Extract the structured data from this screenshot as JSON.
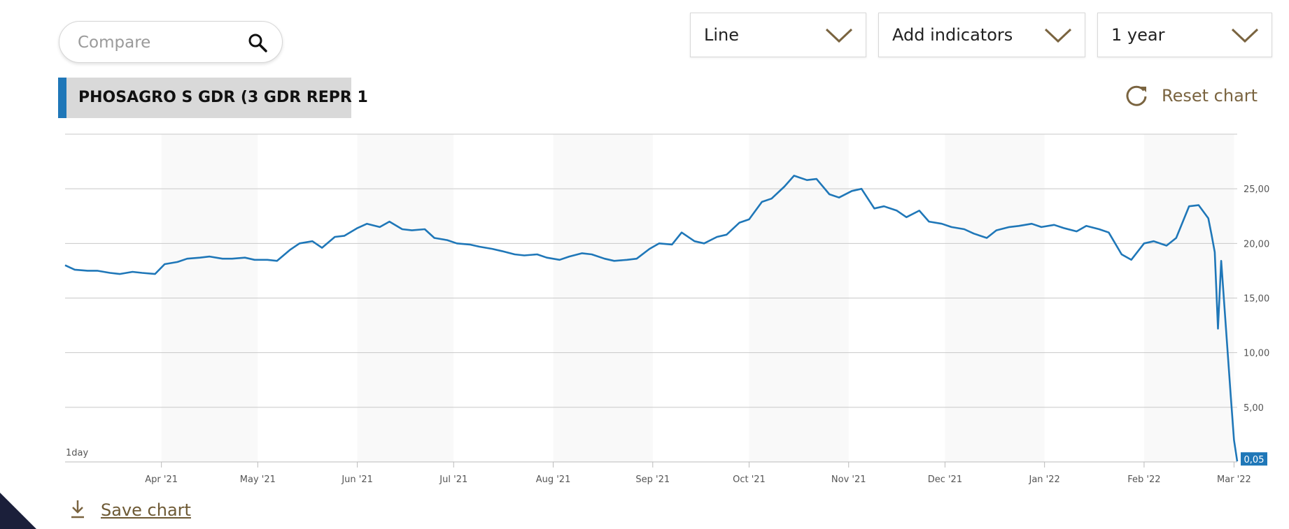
{
  "compare": {
    "placeholder": "Compare"
  },
  "controls": {
    "chart_type": "Line",
    "indicators": "Add indicators",
    "period": "1 year"
  },
  "symbol_label": "PHOSAGRO S GDR (3 GDR REPR 1",
  "reset_label": "Reset chart",
  "save_label": "Save chart",
  "colors": {
    "line": "#1f77b8",
    "accent": "#7a6440",
    "grid": "#c8c8c8",
    "axis_text": "#555555"
  },
  "chart_data": {
    "type": "line",
    "interval_label": "1day",
    "last_value_label": "0,05",
    "ylim": [
      0,
      30
    ],
    "y_ticks": [
      {
        "value": 5,
        "label": "5,00"
      },
      {
        "value": 10,
        "label": "10,00"
      },
      {
        "value": 15,
        "label": "15,00"
      },
      {
        "value": 20,
        "label": "20,00"
      },
      {
        "value": 25,
        "label": "25,00"
      }
    ],
    "x_start": "2021-03-02",
    "x_end": "2022-03-02",
    "x_ticks": [
      {
        "date": "2021-04-01",
        "label": "Apr '21"
      },
      {
        "date": "2021-05-01",
        "label": "May '21"
      },
      {
        "date": "2021-06-01",
        "label": "Jun '21"
      },
      {
        "date": "2021-07-01",
        "label": "Jul '21"
      },
      {
        "date": "2021-08-01",
        "label": "Aug '21"
      },
      {
        "date": "2021-09-01",
        "label": "Sep '21"
      },
      {
        "date": "2021-10-01",
        "label": "Oct '21"
      },
      {
        "date": "2021-11-01",
        "label": "Nov '21"
      },
      {
        "date": "2021-12-01",
        "label": "Dec '21"
      },
      {
        "date": "2022-01-01",
        "label": "Jan '22"
      },
      {
        "date": "2022-02-01",
        "label": "Feb '22"
      },
      {
        "date": "2022-03-01",
        "label": "Mar '22"
      }
    ],
    "series": [
      {
        "x": [
          "2021-03-02",
          "2021-03-05",
          "2021-03-09",
          "2021-03-12",
          "2021-03-16",
          "2021-03-19",
          "2021-03-23",
          "2021-03-26",
          "2021-03-30",
          "2021-04-02",
          "2021-04-06",
          "2021-04-09",
          "2021-04-13",
          "2021-04-16",
          "2021-04-20",
          "2021-04-23",
          "2021-04-27",
          "2021-04-30",
          "2021-05-04",
          "2021-05-07",
          "2021-05-11",
          "2021-05-14",
          "2021-05-18",
          "2021-05-21",
          "2021-05-25",
          "2021-05-28",
          "2021-06-01",
          "2021-06-04",
          "2021-06-08",
          "2021-06-11",
          "2021-06-15",
          "2021-06-18",
          "2021-06-22",
          "2021-06-25",
          "2021-06-29",
          "2021-07-02",
          "2021-07-06",
          "2021-07-09",
          "2021-07-13",
          "2021-07-16",
          "2021-07-20",
          "2021-07-23",
          "2021-07-27",
          "2021-07-30",
          "2021-08-03",
          "2021-08-06",
          "2021-08-10",
          "2021-08-13",
          "2021-08-17",
          "2021-08-20",
          "2021-08-24",
          "2021-08-27",
          "2021-08-31",
          "2021-09-03",
          "2021-09-07",
          "2021-09-10",
          "2021-09-14",
          "2021-09-17",
          "2021-09-21",
          "2021-09-24",
          "2021-09-28",
          "2021-10-01",
          "2021-10-05",
          "2021-10-08",
          "2021-10-12",
          "2021-10-15",
          "2021-10-19",
          "2021-10-22",
          "2021-10-26",
          "2021-10-29",
          "2021-11-02",
          "2021-11-05",
          "2021-11-09",
          "2021-11-12",
          "2021-11-16",
          "2021-11-19",
          "2021-11-23",
          "2021-11-26",
          "2021-11-30",
          "2021-12-03",
          "2021-12-07",
          "2021-12-10",
          "2021-12-14",
          "2021-12-17",
          "2021-12-21",
          "2021-12-24",
          "2021-12-28",
          "2021-12-31",
          "2022-01-04",
          "2022-01-07",
          "2022-01-11",
          "2022-01-14",
          "2022-01-18",
          "2022-01-21",
          "2022-01-25",
          "2022-01-28",
          "2022-02-01",
          "2022-02-04",
          "2022-02-08",
          "2022-02-11",
          "2022-02-15",
          "2022-02-18",
          "2022-02-21",
          "2022-02-22",
          "2022-02-23",
          "2022-02-24",
          "2022-02-25",
          "2022-02-28",
          "2022-03-01",
          "2022-03-02"
        ],
        "y": [
          18.0,
          17.6,
          17.5,
          17.5,
          17.3,
          17.2,
          17.4,
          17.3,
          17.2,
          18.1,
          18.3,
          18.6,
          18.7,
          18.8,
          18.6,
          18.6,
          18.7,
          18.5,
          18.5,
          18.4,
          19.4,
          20.0,
          20.2,
          19.6,
          20.6,
          20.7,
          21.4,
          21.8,
          21.5,
          22.0,
          21.3,
          21.2,
          21.3,
          20.5,
          20.3,
          20.0,
          19.9,
          19.7,
          19.5,
          19.3,
          19.0,
          18.9,
          19.0,
          18.7,
          18.5,
          18.8,
          19.1,
          19.0,
          18.6,
          18.4,
          18.5,
          18.6,
          19.5,
          20.0,
          19.9,
          21.0,
          20.2,
          20.0,
          20.6,
          20.8,
          21.9,
          22.2,
          23.8,
          24.1,
          25.2,
          26.2,
          25.8,
          25.9,
          24.5,
          24.2,
          24.8,
          25.0,
          23.2,
          23.4,
          23.0,
          22.4,
          23.0,
          22.0,
          21.8,
          21.5,
          21.3,
          20.9,
          20.5,
          21.2,
          21.5,
          21.6,
          21.8,
          21.5,
          21.7,
          21.4,
          21.1,
          21.6,
          21.3,
          21.0,
          19.0,
          18.5,
          20.0,
          20.2,
          19.8,
          20.5,
          23.4,
          23.5,
          22.3,
          20.8,
          19.2,
          12.2,
          18.4,
          6.0,
          2.0,
          0.05
        ]
      }
    ]
  }
}
